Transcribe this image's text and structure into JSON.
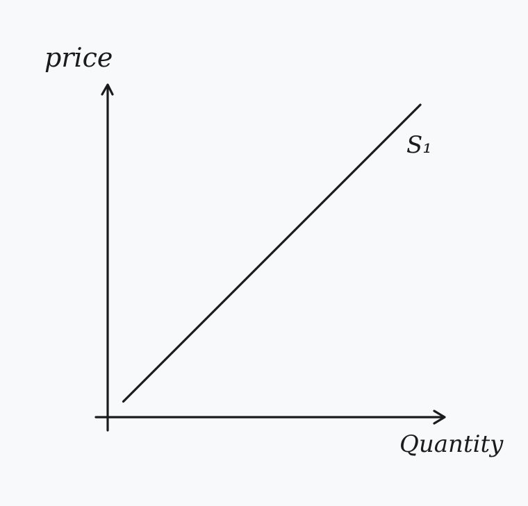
{
  "chart_data": {
    "type": "line",
    "title": "",
    "xlabel": "Quantity",
    "ylabel": "price",
    "grid": false,
    "series": [
      {
        "name": "S₁",
        "x": [
          0.05,
          1.0
        ],
        "y": [
          0.05,
          1.0
        ]
      }
    ]
  },
  "colors": {
    "background": "#f8f9fb",
    "ink": "#1b1b1b"
  }
}
